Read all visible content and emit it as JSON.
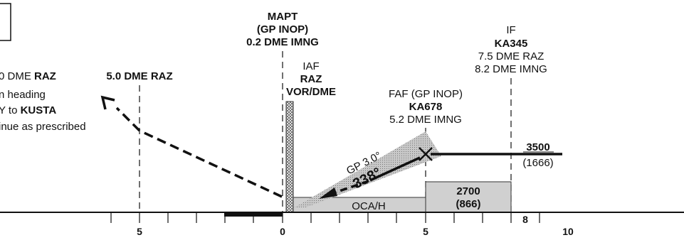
{
  "missed_approach_note": {
    "line1_prefix": "0 DME ",
    "line1_bold": "RAZ",
    "line2": "n heading",
    "line3_prefix": "Y to ",
    "line3_bold": "KUSTA",
    "line4": "inue as prescribed"
  },
  "fixes": {
    "dme_5_raz": "5.0 DME RAZ",
    "mapt": [
      "MAPT",
      "(GP INOP)",
      "0.2 DME IMNG"
    ],
    "iaf": [
      "IAF",
      "RAZ",
      "VOR/DME"
    ],
    "faf": [
      "FAF (GP INOP)",
      "KA678",
      "5.2 DME IMNG"
    ],
    "if": [
      "IF",
      "KA345",
      "7.5 DME RAZ",
      "8.2 DME IMNG"
    ]
  },
  "altitudes": {
    "initial": {
      "alt": "3500",
      "height": "(1666)"
    },
    "intermediate": {
      "alt": "2700",
      "height": "(866)"
    },
    "oca": "OCA/H"
  },
  "glidepath": {
    "label": "GP 3.0°",
    "course": "338°"
  },
  "distance_scale": {
    "labels": [
      "5",
      "0",
      "5",
      "8",
      "10"
    ]
  }
}
